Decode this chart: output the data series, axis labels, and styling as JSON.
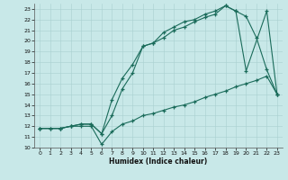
{
  "xlabel": "Humidex (Indice chaleur)",
  "bg_color": "#c8e8e8",
  "line_color": "#1a6b5a",
  "xlim": [
    -0.5,
    23.5
  ],
  "ylim": [
    10,
    23.5
  ],
  "yticks": [
    10,
    11,
    12,
    13,
    14,
    15,
    16,
    17,
    18,
    19,
    20,
    21,
    22,
    23
  ],
  "xticks": [
    0,
    1,
    2,
    3,
    4,
    5,
    6,
    7,
    8,
    9,
    10,
    11,
    12,
    13,
    14,
    15,
    16,
    17,
    18,
    19,
    20,
    21,
    22,
    23
  ],
  "line1_x": [
    0,
    1,
    2,
    3,
    4,
    5,
    6,
    7,
    8,
    9,
    10,
    11,
    12,
    13,
    14,
    15,
    16,
    17,
    18,
    19,
    20,
    21,
    22,
    23
  ],
  "line1_y": [
    11.8,
    11.8,
    11.8,
    12.0,
    12.0,
    12.0,
    10.3,
    11.5,
    12.2,
    12.5,
    13.0,
    13.2,
    13.5,
    13.8,
    14.0,
    14.3,
    14.7,
    15.0,
    15.3,
    15.7,
    16.0,
    16.3,
    16.7,
    15.0
  ],
  "line2_x": [
    0,
    1,
    2,
    3,
    4,
    5,
    6,
    7,
    8,
    9,
    10,
    11,
    12,
    13,
    14,
    15,
    16,
    17,
    18,
    19,
    20,
    21,
    22,
    23
  ],
  "line2_y": [
    11.8,
    11.8,
    11.8,
    12.0,
    12.2,
    12.2,
    11.3,
    13.0,
    15.5,
    17.0,
    19.5,
    19.8,
    20.3,
    21.0,
    21.3,
    21.8,
    22.2,
    22.5,
    23.3,
    22.8,
    22.3,
    20.3,
    17.3,
    15.0
  ],
  "line3_x": [
    0,
    2,
    3,
    4,
    5,
    6,
    7,
    8,
    9,
    10,
    11,
    12,
    13,
    14,
    15,
    16,
    17,
    18,
    19,
    20,
    22,
    23
  ],
  "line3_y": [
    11.8,
    11.8,
    12.0,
    12.2,
    12.2,
    11.3,
    14.5,
    16.5,
    17.8,
    19.5,
    19.8,
    20.8,
    21.3,
    21.8,
    22.0,
    22.5,
    22.8,
    23.3,
    22.8,
    17.2,
    22.8,
    15.0
  ]
}
